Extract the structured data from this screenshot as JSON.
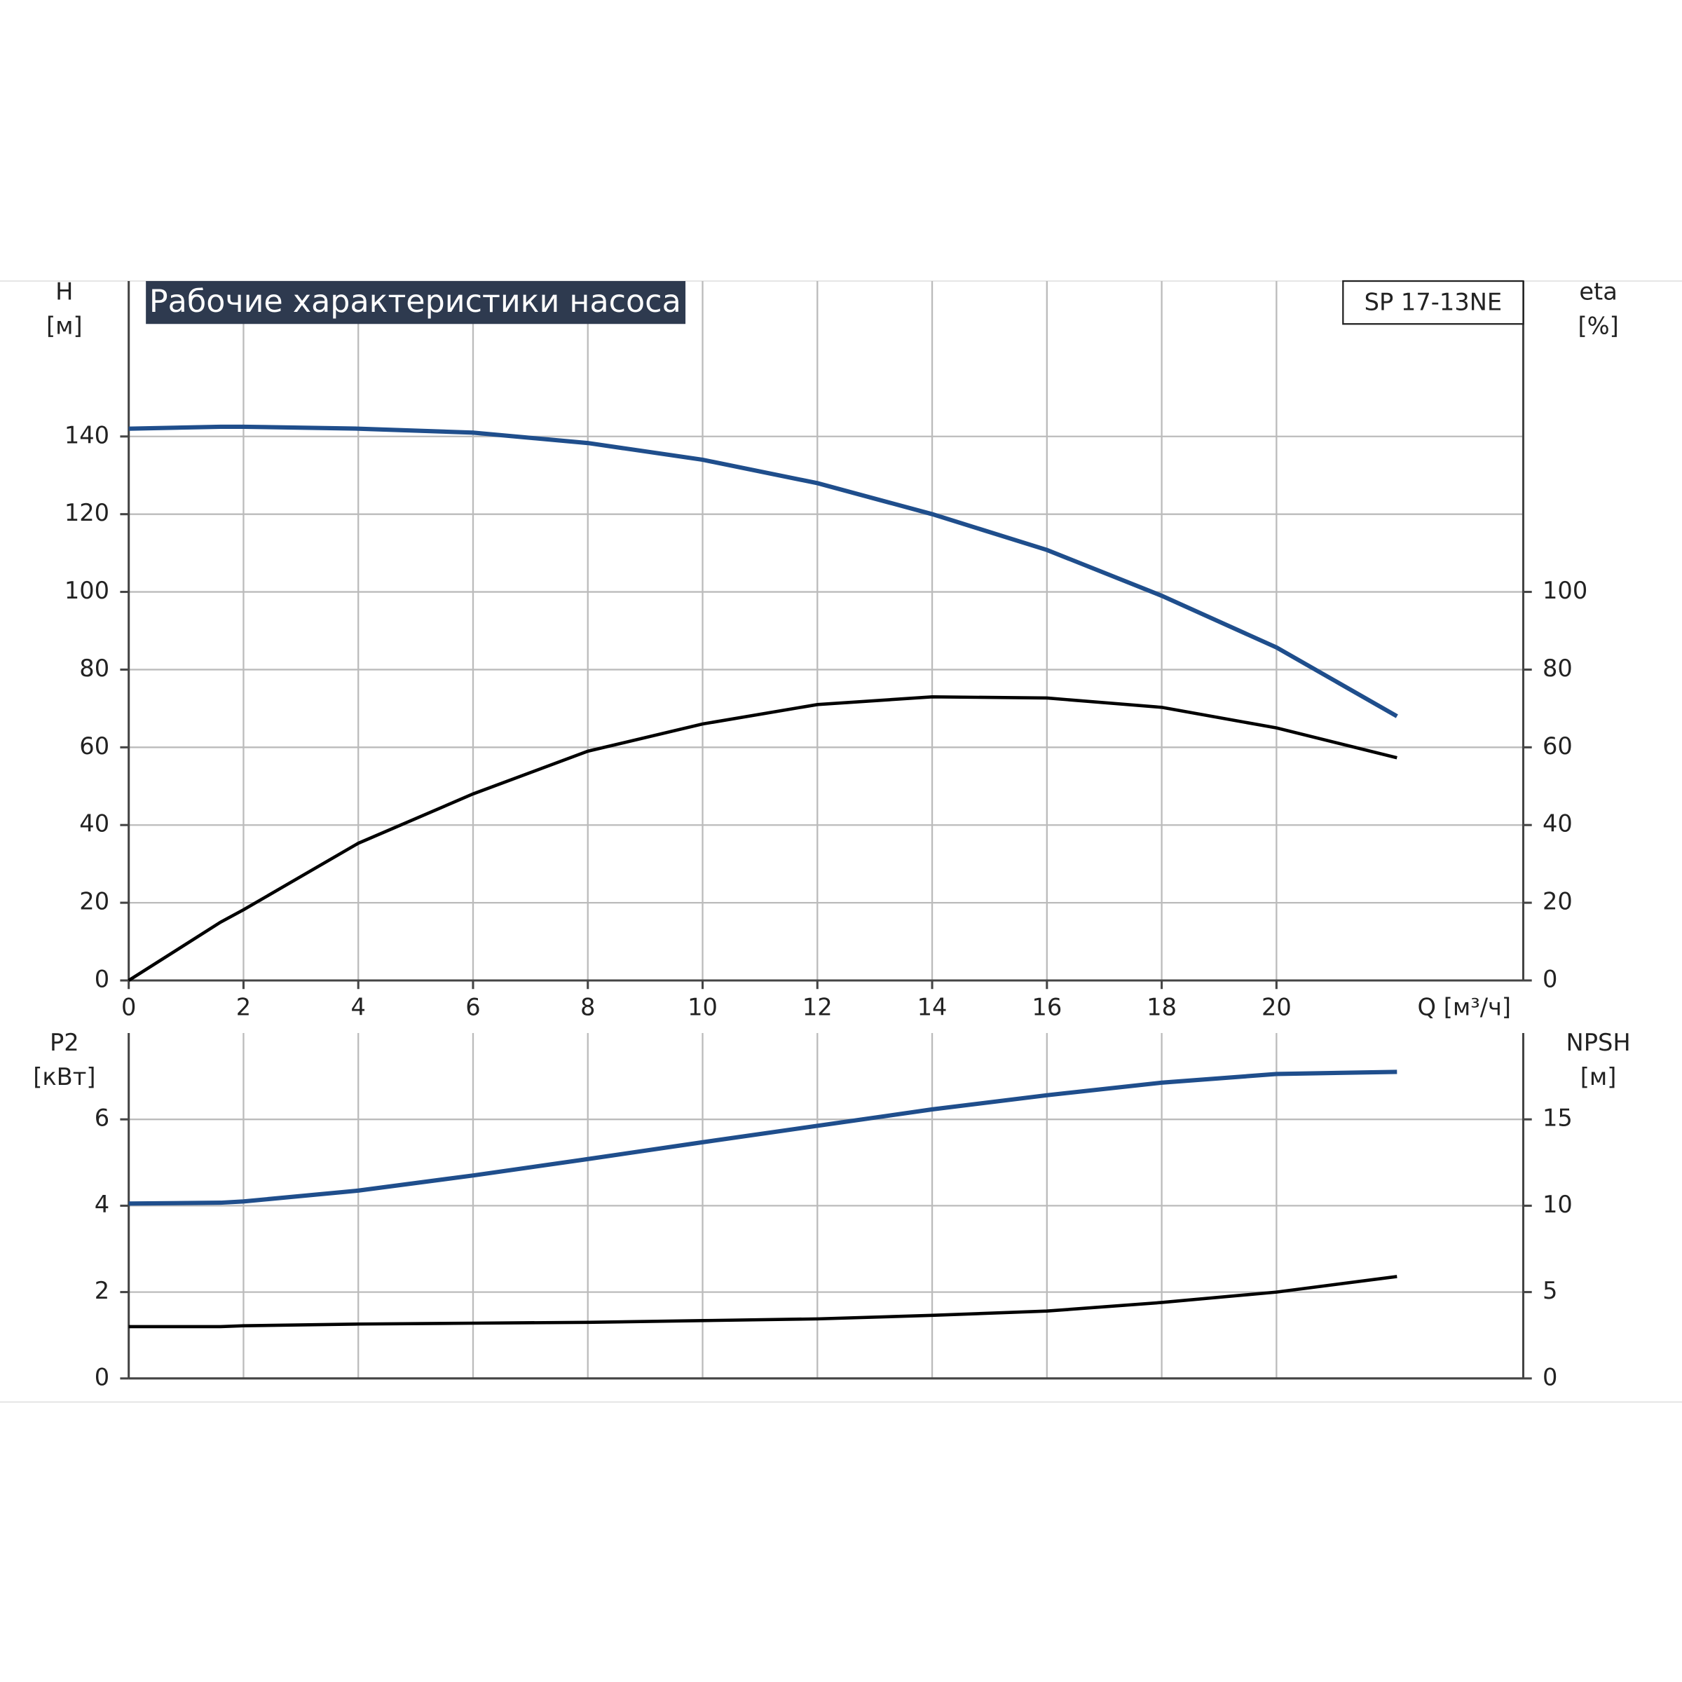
{
  "chart_data": [
    {
      "type": "line",
      "title": "Рабочие характеристики насоса",
      "annotation": "SP 17-13NE",
      "x_label": "Q [м³/ч]",
      "y_label": "H",
      "y_unit": "[м]",
      "y2_label": "eta",
      "y2_unit": "[%]",
      "x": [
        0,
        1.6,
        2,
        4,
        6,
        8,
        10,
        12,
        14,
        16,
        18,
        20,
        22.1
      ],
      "xlim": [
        0,
        24.3
      ],
      "xticks": [
        0,
        2,
        4,
        6,
        8,
        10,
        12,
        14,
        16,
        18,
        20
      ],
      "ylim": [
        0,
        180
      ],
      "yticks": [
        0,
        20,
        40,
        60,
        80,
        100,
        120,
        140
      ],
      "y2lim": [
        0,
        180
      ],
      "y2ticks": [
        0,
        20,
        40,
        60,
        80,
        100
      ],
      "grid": true,
      "series": [
        {
          "color": "#1f4e8c",
          "values": [
            142,
            142.5,
            142.5,
            142,
            141,
            138.3,
            134,
            128,
            120,
            110.8,
            99,
            85.7,
            68
          ]
        },
        {
          "color": "#000000",
          "axis": "y2",
          "values": [
            0,
            15,
            18.2,
            35.3,
            48,
            59,
            66,
            71,
            73,
            72.7,
            70.3,
            65,
            57.3
          ]
        }
      ]
    },
    {
      "type": "line",
      "y_label": "P2",
      "y_unit": "[кВт]",
      "y2_label": "NPSH",
      "y2_unit": "[м]",
      "x": [
        0,
        1.6,
        2,
        4,
        6,
        8,
        10,
        12,
        14,
        16,
        18,
        20,
        22.1
      ],
      "xlim": [
        0,
        24.3
      ],
      "xticks": [
        0,
        2,
        4,
        6,
        8,
        10,
        12,
        14,
        16,
        18,
        20
      ],
      "ylim": [
        0,
        8
      ],
      "yticks": [
        0,
        2,
        4,
        6
      ],
      "y2lim": [
        0,
        20
      ],
      "y2ticks": [
        0,
        5,
        10,
        15
      ],
      "grid": true,
      "series": [
        {
          "color": "#1f4e8c",
          "values": [
            4.05,
            4.07,
            4.1,
            4.35,
            4.7,
            5.08,
            5.47,
            5.85,
            6.23,
            6.56,
            6.85,
            7.05,
            7.1
          ]
        },
        {
          "color": "#000000",
          "axis": "y2",
          "values": [
            3.0,
            3.0,
            3.05,
            3.15,
            3.2,
            3.25,
            3.35,
            3.45,
            3.65,
            3.9,
            4.4,
            5.0,
            5.9
          ]
        }
      ]
    }
  ]
}
